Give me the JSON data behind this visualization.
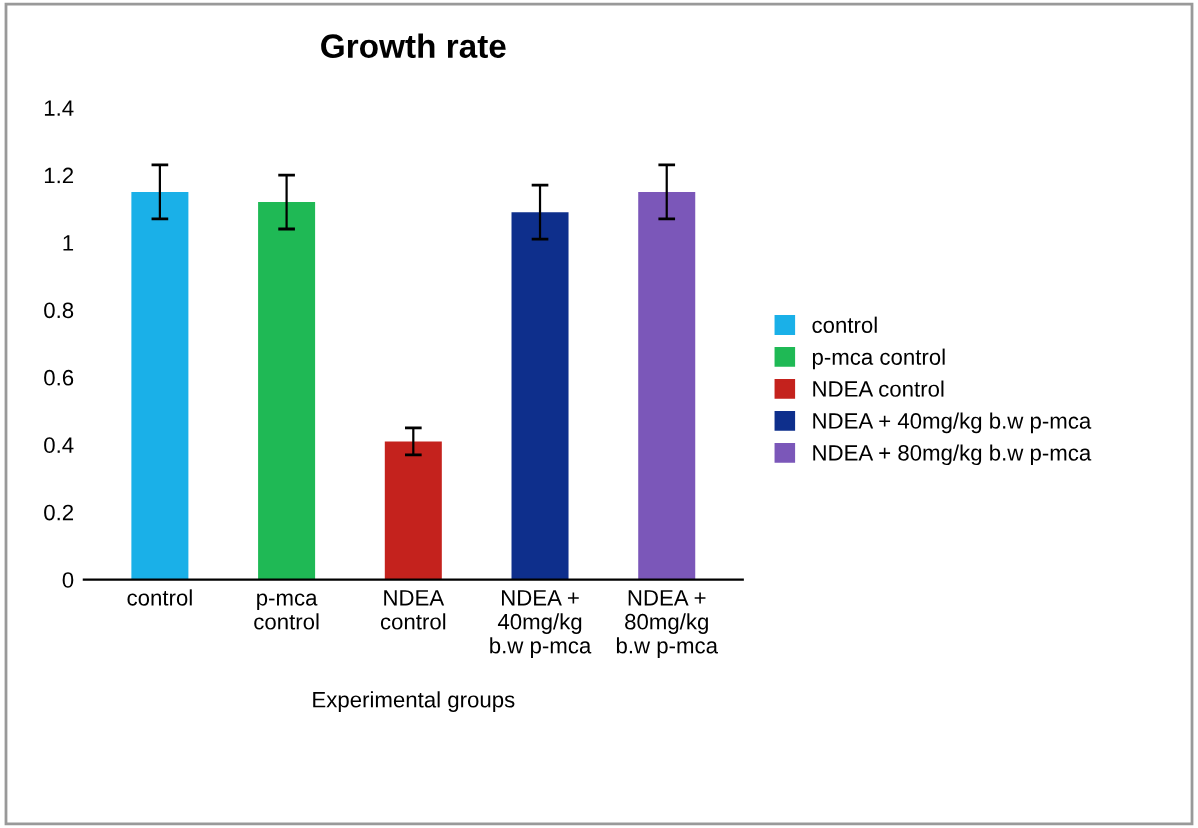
{
  "chart_data": {
    "type": "bar",
    "title": "Growth rate",
    "xlabel": "Experimental groups",
    "categories": [
      "control",
      "p-mca\ncontrol",
      "NDEA\ncontrol",
      "NDEA +\n40mg/kg\nb.w p-mca",
      "NDEA +\n80mg/kg\nb.w p-mca"
    ],
    "series": [
      {
        "name": "control",
        "color": "#1ab0e8",
        "values": [
          1.15,
          null,
          null,
          null,
          null
        ],
        "errors": [
          0.08,
          null,
          null,
          null,
          null
        ]
      },
      {
        "name": "p-mca control",
        "color": "#1fb955",
        "values": [
          null,
          1.12,
          null,
          null,
          null
        ],
        "errors": [
          null,
          0.08,
          null,
          null,
          null
        ]
      },
      {
        "name": "NDEA control",
        "color": "#c4221d",
        "values": [
          null,
          null,
          0.41,
          null,
          null
        ],
        "errors": [
          null,
          null,
          0.04,
          null,
          null
        ]
      },
      {
        "name": "NDEA + 40mg/kg b.w p-mca",
        "color": "#0e2f8c",
        "values": [
          null,
          null,
          null,
          1.09,
          null
        ],
        "errors": [
          null,
          null,
          null,
          0.08,
          null
        ]
      },
      {
        "name": "NDEA + 80mg/kg b.w p-mca",
        "color": "#7b57b9",
        "values": [
          null,
          null,
          null,
          null,
          1.15
        ],
        "errors": [
          null,
          null,
          null,
          null,
          0.08
        ]
      }
    ],
    "ylim": [
      0,
      1.4
    ],
    "yticks": [
      0,
      0.2,
      0.4,
      0.6,
      0.8,
      1,
      1.2,
      1.4
    ],
    "grid": false,
    "legend": "right"
  }
}
